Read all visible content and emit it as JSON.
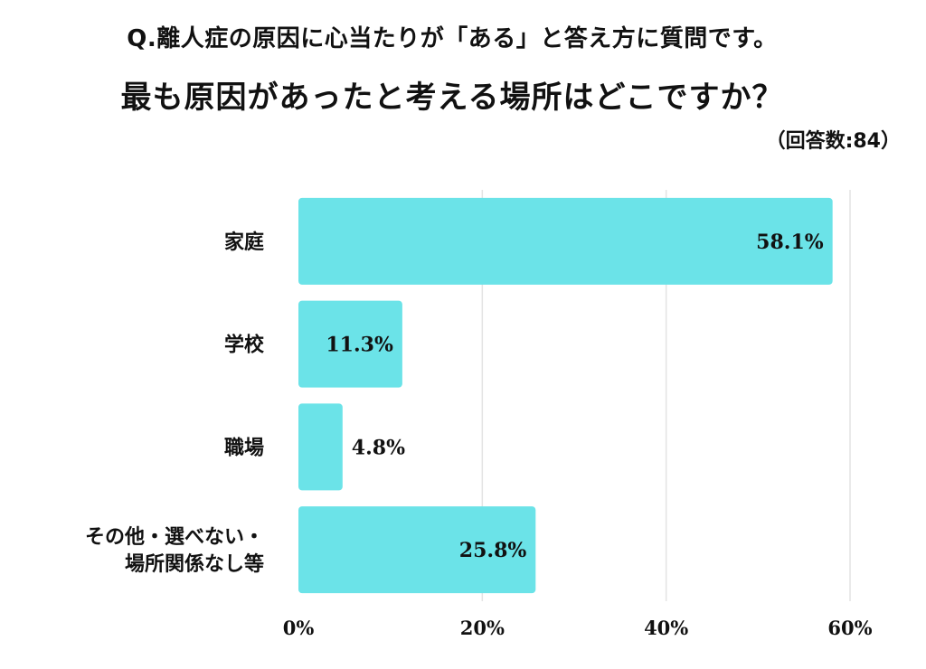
{
  "title_line1": "Q.離人症の原因に心当たりが「ある」と答え方に質問です。",
  "title_line2": "最も原因があったと考える場所はどこですか？",
  "note": "（回答数:84）",
  "chart_data": {
    "type": "bar",
    "orientation": "horizontal",
    "categories": [
      [
        "家庭"
      ],
      [
        "学校"
      ],
      [
        "職場"
      ],
      [
        "その他・選べない・",
        "場所関係なし等"
      ]
    ],
    "values": [
      58.1,
      11.3,
      4.8,
      25.8
    ],
    "value_labels": [
      "58.1%",
      "11.3%",
      "4.8%",
      "25.8%"
    ],
    "xlim": [
      0,
      60
    ],
    "ticks": [
      0,
      20,
      40,
      60
    ],
    "tick_labels": [
      "0%",
      "20%",
      "40%",
      "60%"
    ],
    "grid": true,
    "bar_color": "#6BE3E8"
  }
}
